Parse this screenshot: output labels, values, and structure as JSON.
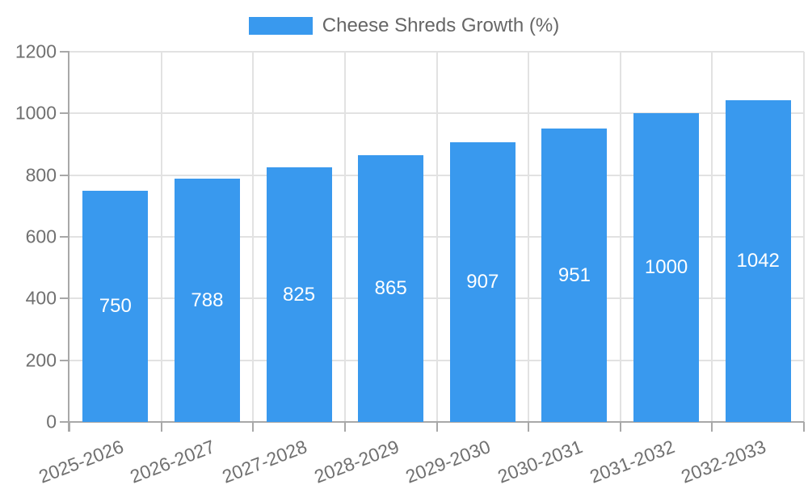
{
  "legend": {
    "label": "Cheese Shreds Growth (%)"
  },
  "chart_data": {
    "type": "bar",
    "title": "Cheese Shreds Growth (%)",
    "series_label": "Cheese Shreds Growth (%)",
    "categories": [
      "2025-2026",
      "2026-2027",
      "2027-2028",
      "2028-2029",
      "2029-2030",
      "2030-2031",
      "2031-2032",
      "2032-2033"
    ],
    "values": [
      750,
      788,
      825,
      865,
      907,
      951,
      1000,
      1042
    ],
    "value_labels": [
      "750",
      "788",
      "825",
      "865",
      "907",
      "951",
      "1000",
      "1042"
    ],
    "xlabel": "",
    "ylabel": "",
    "ylim": [
      0,
      1200
    ],
    "yticks": [
      0,
      200,
      400,
      600,
      800,
      1000,
      1200
    ],
    "grid": true,
    "legend_position": "top",
    "value_label_position": "inside-center",
    "colors": {
      "bar": "#3999ee",
      "value_label": "#ffffff",
      "grid": "#e2e2e2",
      "axis": "#a8a8a8",
      "tick_text": "#707070",
      "legend_text": "#666666",
      "background": "#ffffff"
    }
  }
}
